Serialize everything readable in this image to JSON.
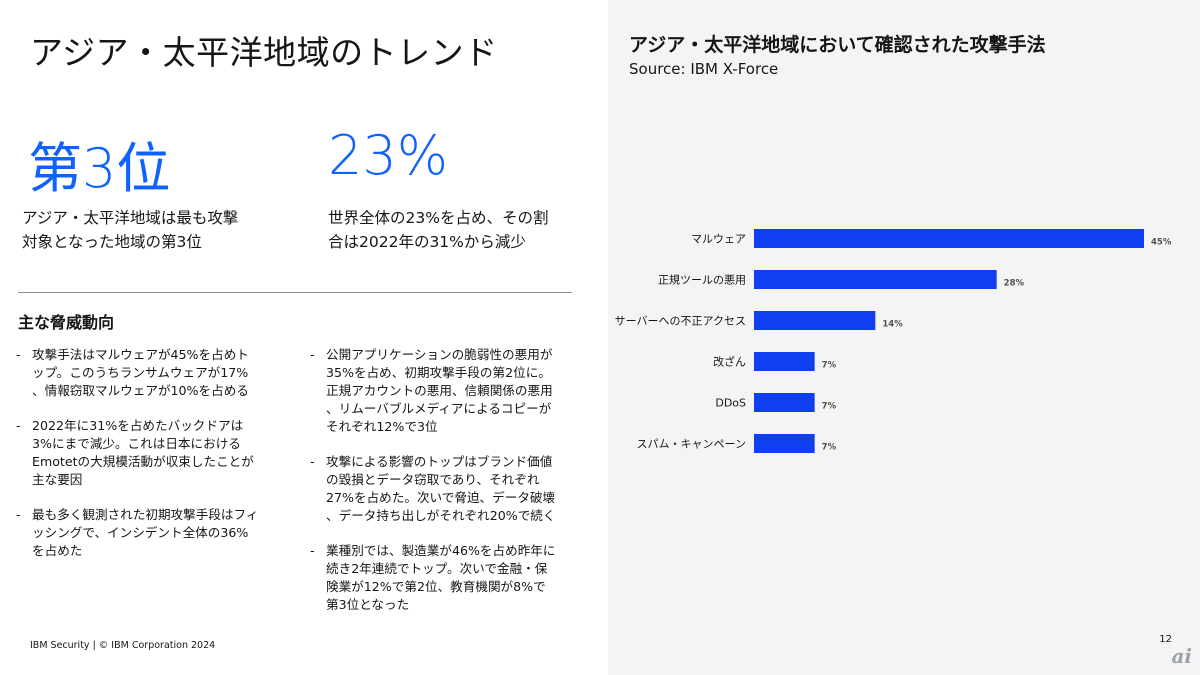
{
  "slide": {
    "title": "アジア・太平洋地域のトレンド",
    "footer": "IBM Security | © IBM Corporation 2024",
    "page_number": "12",
    "logo_text": "ai"
  },
  "stats": [
    {
      "value": "第3位",
      "lines": [
        "アジア・太平洋地域は最も攻撃",
        "対象となった地域の第3位"
      ]
    },
    {
      "value": "23%",
      "lines": [
        "世界全体の23%を占め、その割",
        "合は2022年の31%から減少"
      ]
    }
  ],
  "threats": {
    "heading": "主な脅威動向",
    "dash": "-",
    "col1": [
      [
        "攻撃手法はマルウェアが45%を占めト",
        "ップ。このうちランサムウェアが17%",
        "、情報窃取マルウェアが10%を占める"
      ],
      [
        "2022年に31%を占めたバックドアは",
        "3%にまで減少。これは日本における",
        "Emotetの大規模活動が収束したことが",
        "主な要因"
      ],
      [
        "最も多く観測された初期攻撃手段はフィ",
        "ッシングで、インシデント全体の36%",
        "を占めた"
      ]
    ],
    "col2": [
      [
        "公開アプリケーションの脆弱性の悪用が",
        "35%を占め、初期攻撃手段の第2位に。",
        "正規アカウントの悪用、信頼関係の悪用",
        "、リムーバブルメディアによるコピーが",
        "それぞれ12%で3位"
      ],
      [
        "攻撃による影響のトップはブランド価値",
        "の毀損とデータ窃取であり、それぞれ",
        "27%を占めた。次いで脅迫、データ破壊",
        "、データ持ち出しがそれぞれ20%で続く"
      ],
      [
        "業種別では、製造業が46%を占め昨年に",
        "続き2年連続でトップ。次いで金融・保",
        "険業が12%で第2位、教育機関が8%で",
        "第3位となった"
      ]
    ]
  },
  "chart_panel": {
    "title": "アジア・太平洋地域において確認された攻撃手法",
    "subtitle": "Source: IBM X-Force"
  },
  "chart_data": {
    "type": "bar",
    "orientation": "horizontal",
    "title": "アジア・太平洋地域において確認された攻撃手法",
    "subtitle": "Source: IBM X-Force",
    "categories": [
      "マルウェア",
      "正規ツールの悪用",
      "サーバーへの不正アクセス",
      "改ざん",
      "DDoS",
      "スパム・キャンペーン"
    ],
    "values": [
      45,
      28,
      14,
      7,
      7,
      7
    ],
    "value_labels": [
      "45%",
      "28%",
      "14%",
      "7%",
      "7%",
      "7%"
    ],
    "unit": "%",
    "xlim": [
      0,
      45
    ],
    "bar_color": "#0f3ff0",
    "grid": false,
    "legend": false
  }
}
